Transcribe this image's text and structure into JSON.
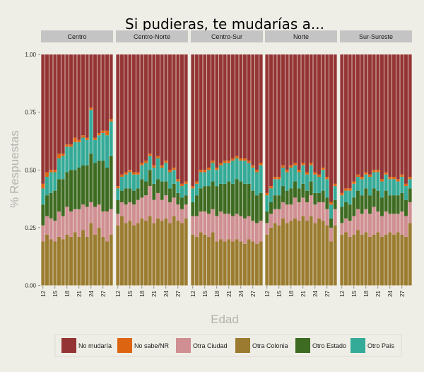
{
  "chart_data": {
    "type": "bar",
    "stacked": true,
    "percent": true,
    "title": "Si pudieras, te mudarías a...",
    "xlabel": "Edad",
    "ylabel": "% Respuestas",
    "ylim": [
      0,
      1
    ],
    "yticks": [
      "0.00",
      "0.25",
      "0.50",
      "0.75",
      "1.00"
    ],
    "xtick_labels": [
      "12",
      "15",
      "18",
      "21",
      "24",
      "27"
    ],
    "ages": [
      12,
      13,
      14,
      15,
      16,
      17,
      18,
      19,
      20,
      21,
      22,
      23,
      24,
      25,
      26,
      27,
      28,
      29
    ],
    "legend_position": "bottom",
    "stack_order": [
      "Otra Colonia",
      "Otra Ciudad",
      "Otro Estado",
      "Otro País",
      "No sabe/NR",
      "No mudaría"
    ],
    "legend": [
      {
        "name": "No mudaría",
        "color": "#943434"
      },
      {
        "name": "No sabe/NR",
        "color": "#dd6512"
      },
      {
        "name": "Otra Ciudad",
        "color": "#d08f92"
      },
      {
        "name": "Otra Colonia",
        "color": "#9b7b2f"
      },
      {
        "name": "Otro Estado",
        "color": "#3d6b21"
      },
      {
        "name": "Otro País",
        "color": "#34aa98"
      }
    ],
    "panels": [
      {
        "name": "Centro",
        "series": [
          {
            "name": "Otra Colonia",
            "values": [
              0.19,
              0.22,
              0.2,
              0.19,
              0.21,
              0.2,
              0.22,
              0.21,
              0.23,
              0.21,
              0.24,
              0.21,
              0.27,
              0.22,
              0.25,
              0.21,
              0.19,
              0.22
            ]
          },
          {
            "name": "Otra Ciudad",
            "values": [
              0.07,
              0.08,
              0.09,
              0.09,
              0.11,
              0.1,
              0.12,
              0.11,
              0.1,
              0.12,
              0.11,
              0.13,
              0.09,
              0.12,
              0.1,
              0.11,
              0.13,
              0.11
            ]
          },
          {
            "name": "Otro Estado",
            "values": [
              0.09,
              0.09,
              0.11,
              0.13,
              0.14,
              0.16,
              0.15,
              0.18,
              0.17,
              0.18,
              0.17,
              0.18,
              0.21,
              0.19,
              0.19,
              0.22,
              0.19,
              0.23
            ]
          },
          {
            "name": "Otro País",
            "values": [
              0.07,
              0.08,
              0.09,
              0.08,
              0.09,
              0.1,
              0.11,
              0.1,
              0.12,
              0.11,
              0.12,
              0.11,
              0.19,
              0.1,
              0.11,
              0.12,
              0.14,
              0.15
            ]
          },
          {
            "name": "No sabe/NR",
            "values": [
              0.02,
              0.02,
              0.01,
              0.01,
              0.02,
              0.01,
              0.01,
              0.01,
              0.02,
              0.01,
              0.01,
              0.01,
              0.01,
              0.01,
              0.01,
              0.01,
              0.02,
              0.01
            ]
          },
          {
            "name": "No mudaría",
            "values": [
              0.56,
              0.51,
              0.5,
              0.5,
              0.43,
              0.43,
              0.39,
              0.39,
              0.36,
              0.37,
              0.35,
              0.36,
              0.23,
              0.36,
              0.34,
              0.33,
              0.33,
              0.28
            ]
          }
        ]
      },
      {
        "name": "Centro-Norte",
        "series": [
          {
            "name": "Otra Colonia",
            "values": [
              0.26,
              0.3,
              0.27,
              0.28,
              0.26,
              0.27,
              0.29,
              0.28,
              0.3,
              0.27,
              0.29,
              0.28,
              0.29,
              0.27,
              0.3,
              0.28,
              0.27,
              0.29
            ]
          },
          {
            "name": "Otra Ciudad",
            "values": [
              0.05,
              0.06,
              0.08,
              0.08,
              0.09,
              0.1,
              0.09,
              0.11,
              0.13,
              0.1,
              0.11,
              0.09,
              0.1,
              0.09,
              0.08,
              0.07,
              0.06,
              0.06
            ]
          },
          {
            "name": "Otro Estado",
            "values": [
              0.06,
              0.05,
              0.07,
              0.06,
              0.06,
              0.05,
              0.08,
              0.06,
              0.07,
              0.07,
              0.06,
              0.08,
              0.06,
              0.06,
              0.06,
              0.05,
              0.05,
              0.04
            ]
          },
          {
            "name": "Otro País",
            "values": [
              0.05,
              0.06,
              0.06,
              0.07,
              0.07,
              0.06,
              0.06,
              0.08,
              0.06,
              0.07,
              0.09,
              0.06,
              0.08,
              0.07,
              0.06,
              0.05,
              0.05,
              0.05
            ]
          },
          {
            "name": "No sabe/NR",
            "values": [
              0.01,
              0.01,
              0.01,
              0.01,
              0.01,
              0.01,
              0.01,
              0.01,
              0.01,
              0.01,
              0.01,
              0.01,
              0.01,
              0.01,
              0.01,
              0.01,
              0.01,
              0.01
            ]
          },
          {
            "name": "No mudaría",
            "values": [
              0.57,
              0.52,
              0.51,
              0.5,
              0.51,
              0.51,
              0.47,
              0.46,
              0.43,
              0.48,
              0.44,
              0.48,
              0.46,
              0.5,
              0.49,
              0.54,
              0.56,
              0.55
            ]
          }
        ]
      },
      {
        "name": "Centro-Sur",
        "series": [
          {
            "name": "Otra Colonia",
            "values": [
              0.22,
              0.21,
              0.23,
              0.22,
              0.21,
              0.23,
              0.19,
              0.2,
              0.19,
              0.2,
              0.19,
              0.2,
              0.19,
              0.18,
              0.2,
              0.19,
              0.18,
              0.19
            ]
          },
          {
            "name": "Otra Ciudad",
            "values": [
              0.08,
              0.09,
              0.09,
              0.1,
              0.1,
              0.1,
              0.11,
              0.12,
              0.12,
              0.11,
              0.11,
              0.11,
              0.11,
              0.11,
              0.1,
              0.09,
              0.09,
              0.09
            ]
          },
          {
            "name": "Otro Estado",
            "values": [
              0.06,
              0.09,
              0.1,
              0.11,
              0.12,
              0.12,
              0.13,
              0.12,
              0.13,
              0.14,
              0.14,
              0.15,
              0.15,
              0.15,
              0.14,
              0.13,
              0.12,
              0.12
            ]
          },
          {
            "name": "Otro País",
            "values": [
              0.06,
              0.05,
              0.07,
              0.06,
              0.07,
              0.08,
              0.07,
              0.08,
              0.09,
              0.08,
              0.1,
              0.09,
              0.09,
              0.1,
              0.09,
              0.1,
              0.1,
              0.12
            ]
          },
          {
            "name": "No sabe/NR",
            "values": [
              0.01,
              0.01,
              0.01,
              0.01,
              0.01,
              0.01,
              0.01,
              0.01,
              0.01,
              0.01,
              0.01,
              0.01,
              0.01,
              0.01,
              0.01,
              0.01,
              0.01,
              0.01
            ]
          },
          {
            "name": "No mudaría",
            "values": [
              0.57,
              0.55,
              0.5,
              0.5,
              0.49,
              0.46,
              0.49,
              0.47,
              0.46,
              0.46,
              0.45,
              0.44,
              0.45,
              0.45,
              0.46,
              0.48,
              0.5,
              0.47
            ]
          }
        ]
      },
      {
        "name": "Norte",
        "series": [
          {
            "name": "Otra Colonia",
            "values": [
              0.22,
              0.25,
              0.27,
              0.26,
              0.29,
              0.27,
              0.28,
              0.29,
              0.28,
              0.3,
              0.28,
              0.3,
              0.27,
              0.29,
              0.28,
              0.26,
              0.19,
              0.26
            ]
          },
          {
            "name": "Otra Ciudad",
            "values": [
              0.05,
              0.06,
              0.06,
              0.07,
              0.07,
              0.08,
              0.07,
              0.09,
              0.08,
              0.08,
              0.08,
              0.09,
              0.08,
              0.07,
              0.08,
              0.07,
              0.06,
              0.07
            ]
          },
          {
            "name": "Otro Estado",
            "values": [
              0.05,
              0.05,
              0.06,
              0.06,
              0.07,
              0.06,
              0.07,
              0.07,
              0.06,
              0.06,
              0.05,
              0.06,
              0.05,
              0.04,
              0.05,
              0.05,
              0.04,
              0.04
            ]
          },
          {
            "name": "Otro País",
            "values": [
              0.07,
              0.06,
              0.07,
              0.07,
              0.08,
              0.08,
              0.09,
              0.07,
              0.07,
              0.08,
              0.07,
              0.07,
              0.08,
              0.07,
              0.09,
              0.08,
              0.06,
              0.06
            ]
          },
          {
            "name": "No sabe/NR",
            "values": [
              0.01,
              0.01,
              0.01,
              0.01,
              0.01,
              0.01,
              0.01,
              0.01,
              0.01,
              0.01,
              0.01,
              0.01,
              0.01,
              0.01,
              0.01,
              0.01,
              0.01,
              0.01
            ]
          },
          {
            "name": "No mudaría",
            "values": [
              0.6,
              0.57,
              0.53,
              0.53,
              0.48,
              0.5,
              0.48,
              0.47,
              0.5,
              0.47,
              0.51,
              0.47,
              0.51,
              0.52,
              0.49,
              0.53,
              0.64,
              0.56
            ]
          }
        ]
      },
      {
        "name": "Sur-Sureste",
        "series": [
          {
            "name": "Otra Colonia",
            "values": [
              0.22,
              0.23,
              0.21,
              0.22,
              0.24,
              0.22,
              0.23,
              0.21,
              0.22,
              0.23,
              0.21,
              0.22,
              0.23,
              0.22,
              0.23,
              0.22,
              0.21,
              0.27
            ]
          },
          {
            "name": "Otra Ciudad",
            "values": [
              0.05,
              0.06,
              0.07,
              0.08,
              0.09,
              0.09,
              0.1,
              0.1,
              0.12,
              0.09,
              0.09,
              0.1,
              0.08,
              0.09,
              0.08,
              0.1,
              0.09,
              0.09
            ]
          },
          {
            "name": "Otro Estado",
            "values": [
              0.07,
              0.07,
              0.07,
              0.08,
              0.08,
              0.08,
              0.09,
              0.08,
              0.08,
              0.09,
              0.08,
              0.09,
              0.08,
              0.08,
              0.08,
              0.08,
              0.07,
              0.06
            ]
          },
          {
            "name": "Otro País",
            "values": [
              0.05,
              0.05,
              0.06,
              0.06,
              0.06,
              0.07,
              0.06,
              0.08,
              0.07,
              0.08,
              0.07,
              0.07,
              0.07,
              0.07,
              0.06,
              0.07,
              0.06,
              0.04
            ]
          },
          {
            "name": "No sabe/NR",
            "values": [
              0.01,
              0.01,
              0.01,
              0.01,
              0.01,
              0.01,
              0.01,
              0.01,
              0.01,
              0.01,
              0.01,
              0.01,
              0.01,
              0.01,
              0.01,
              0.01,
              0.01,
              0.01
            ]
          },
          {
            "name": "No mudaría",
            "values": [
              0.6,
              0.58,
              0.58,
              0.55,
              0.52,
              0.53,
              0.51,
              0.52,
              0.5,
              0.5,
              0.54,
              0.51,
              0.53,
              0.53,
              0.54,
              0.52,
              0.56,
              0.53
            ]
          }
        ]
      }
    ]
  }
}
